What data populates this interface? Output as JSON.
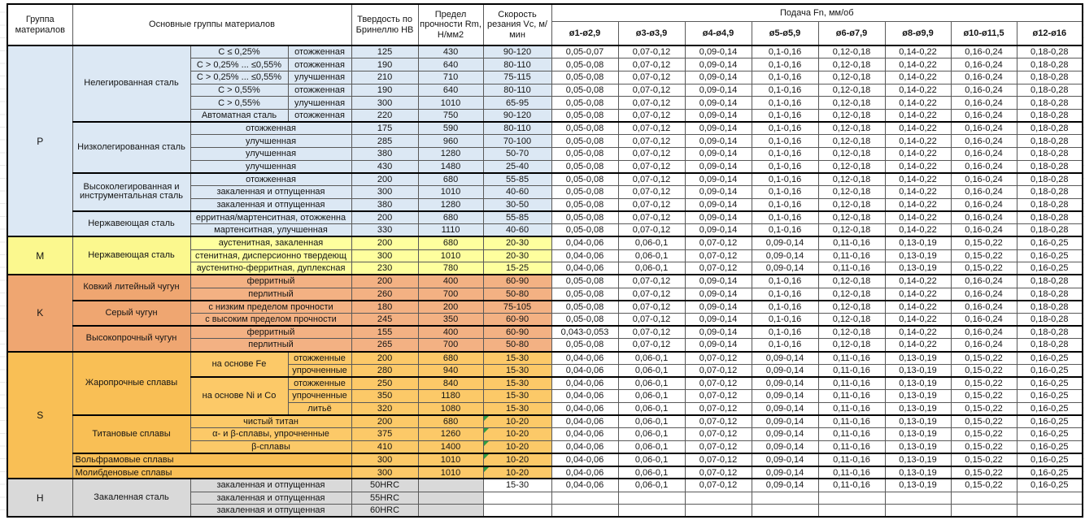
{
  "comment_green": "#2f9e44",
  "header": {
    "group_col": "Группа материалов",
    "main_col": "Основные группы материалов",
    "hardness_col": "Твердость по Бринеллю HB",
    "strength_col": "Предел прочности Rm, Н/мм2",
    "speed_col": "Скорость резания Vc, м/мин",
    "feed_title": "Подача Fn, мм/об",
    "feed_cols": [
      "ø1-ø2,9",
      "ø3-ø3,9",
      "ø4-ø4,9",
      "ø5-ø5,9",
      "ø6-ø7,9",
      "ø8-ø9,9",
      "ø10-ø11,5",
      "ø12-ø16"
    ]
  },
  "groups": [
    {
      "code": "P",
      "label_bg": "#dce8f4",
      "data_bg": "#dce8f4",
      "subgroups": [
        {
          "name": "Нелегированная сталь",
          "rows": [
            {
              "c3": "C ≤ 0,25%",
              "c4": "отожженная",
              "hb": "125",
              "rm": "430",
              "vc": "90-120",
              "feeds": [
                "0,05-0,07",
                "0,07-0,12",
                "0,09-0,14",
                "0,1-0,16",
                "0,12-0,18",
                "0,14-0,22",
                "0,16-0,24",
                "0,18-0,28"
              ]
            },
            {
              "c3": "C > 0,25% ... ≤0,55%",
              "c4": "отожженная",
              "hb": "190",
              "rm": "640",
              "vc": "80-110",
              "feeds": [
                "0,05-0,08",
                "0,07-0,12",
                "0,09-0,14",
                "0,1-0,16",
                "0,12-0,18",
                "0,14-0,22",
                "0,16-0,24",
                "0,18-0,28"
              ]
            },
            {
              "c3": "C > 0,25% ... ≤0,55%",
              "c4": "улучшенная",
              "hb": "210",
              "rm": "710",
              "vc": "75-115",
              "feeds": [
                "0,05-0,08",
                "0,07-0,12",
                "0,09-0,14",
                "0,1-0,16",
                "0,12-0,18",
                "0,14-0,22",
                "0,16-0,24",
                "0,18-0,28"
              ]
            },
            {
              "c3": "C > 0,55%",
              "c4": "отожженная",
              "hb": "190",
              "rm": "640",
              "vc": "80-110",
              "feeds": [
                "0,05-0,08",
                "0,07-0,12",
                "0,09-0,14",
                "0,1-0,16",
                "0,12-0,18",
                "0,14-0,22",
                "0,16-0,24",
                "0,18-0,28"
              ]
            },
            {
              "c3": "C > 0,55%",
              "c4": "улучшенная",
              "hb": "300",
              "rm": "1010",
              "vc": "65-95",
              "feeds": [
                "0,05-0,08",
                "0,07-0,12",
                "0,09-0,14",
                "0,1-0,16",
                "0,12-0,18",
                "0,14-0,22",
                "0,16-0,24",
                "0,18-0,28"
              ]
            },
            {
              "c3": "Автоматная сталь",
              "c4": "отожженная",
              "hb": "220",
              "rm": "750",
              "vc": "90-120",
              "feeds": [
                "0,05-0,08",
                "0,07-0,12",
                "0,09-0,14",
                "0,1-0,16",
                "0,12-0,18",
                "0,14-0,22",
                "0,16-0,24",
                "0,18-0,28"
              ]
            }
          ]
        },
        {
          "name": "Низколегированная сталь",
          "rows": [
            {
              "c34": "отожженная",
              "hb": "175",
              "rm": "590",
              "vc": "80-110",
              "feeds": [
                "0,05-0,08",
                "0,07-0,12",
                "0,09-0,14",
                "0,1-0,16",
                "0,12-0,18",
                "0,14-0,22",
                "0,16-0,24",
                "0,18-0,28"
              ]
            },
            {
              "c34": "улучшенная",
              "hb": "285",
              "rm": "960",
              "vc": "70-100",
              "feeds": [
                "0,05-0,08",
                "0,07-0,12",
                "0,09-0,14",
                "0,1-0,16",
                "0,12-0,18",
                "0,14-0,22",
                "0,16-0,24",
                "0,18-0,28"
              ]
            },
            {
              "c34": "улучшенная",
              "hb": "380",
              "rm": "1280",
              "vc": "50-70",
              "feeds": [
                "0,05-0,08",
                "0,07-0,12",
                "0,09-0,14",
                "0,1-0,16",
                "0,12-0,18",
                "0,14-0,22",
                "0,16-0,24",
                "0,18-0,28"
              ]
            },
            {
              "c34": "улучшенная",
              "hb": "430",
              "rm": "1480",
              "vc": "25-40",
              "feeds": [
                "0,05-0,08",
                "0,07-0,12",
                "0,09-0,14",
                "0,1-0,16",
                "0,12-0,18",
                "0,14-0,22",
                "0,16-0,24",
                "0,18-0,28"
              ]
            }
          ]
        },
        {
          "name": "Высоколегированная и инструментальная сталь",
          "rows": [
            {
              "c34": "отожженная",
              "hb": "200",
              "rm": "680",
              "vc": "55-85",
              "feeds": [
                "0,05-0,08",
                "0,07-0,12",
                "0,09-0,14",
                "0,1-0,16",
                "0,12-0,18",
                "0,14-0,22",
                "0,16-0,24",
                "0,18-0,28"
              ]
            },
            {
              "c34": "закаленная и отпущенная",
              "hb": "300",
              "rm": "1010",
              "vc": "40-60",
              "feeds": [
                "0,05-0,08",
                "0,07-0,12",
                "0,09-0,14",
                "0,1-0,16",
                "0,12-0,18",
                "0,14-0,22",
                "0,16-0,24",
                "0,18-0,28"
              ]
            },
            {
              "c34": "закаленная и отпущенная",
              "hb": "380",
              "rm": "1280",
              "vc": "30-50",
              "feeds": [
                "0,05-0,08",
                "0,07-0,12",
                "0,09-0,14",
                "0,1-0,16",
                "0,12-0,18",
                "0,14-0,22",
                "0,16-0,24",
                "0,18-0,28"
              ]
            }
          ]
        },
        {
          "name": "Нержавеющая сталь",
          "rows": [
            {
              "c34": "ерритная/мартенситная, отожженна",
              "hb": "200",
              "rm": "680",
              "vc": "55-85",
              "feeds": [
                "0,05-0,08",
                "0,07-0,12",
                "0,09-0,14",
                "0,1-0,16",
                "0,12-0,18",
                "0,14-0,22",
                "0,16-0,24",
                "0,18-0,28"
              ]
            },
            {
              "c34": "мартенситная, улучшенная",
              "hb": "330",
              "rm": "1110",
              "vc": "40-60",
              "feeds": [
                "0,05-0,08",
                "0,07-0,12",
                "0,09-0,14",
                "0,1-0,16",
                "0,12-0,18",
                "0,14-0,22",
                "0,16-0,24",
                "0,18-0,28"
              ]
            }
          ]
        }
      ]
    },
    {
      "code": "M",
      "label_bg": "#fbf88e",
      "data_bg": "#feff9e",
      "subgroups": [
        {
          "name": "Нержавеющая сталь",
          "rows": [
            {
              "c34": "аустенитная, закаленная",
              "hb": "200",
              "rm": "680",
              "vc": "20-30",
              "feeds": [
                "0,04-0,06",
                "0,06-0,1",
                "0,07-0,12",
                "0,09-0,14",
                "0,11-0,16",
                "0,13-0,19",
                "0,15-0,22",
                "0,16-0,25"
              ]
            },
            {
              "c34": "стенитная, дисперсионно твердеющ",
              "hb": "300",
              "rm": "1010",
              "vc": "20-30",
              "feeds": [
                "0,04-0,06",
                "0,06-0,1",
                "0,07-0,12",
                "0,09-0,14",
                "0,11-0,16",
                "0,13-0,19",
                "0,15-0,22",
                "0,16-0,25"
              ]
            },
            {
              "c34": "аустенитно-ферритная, дуплексная",
              "hb": "230",
              "rm": "780",
              "vc": "15-25",
              "feeds": [
                "0,04-0,06",
                "0,06-0,1",
                "0,07-0,12",
                "0,09-0,14",
                "0,11-0,16",
                "0,13-0,19",
                "0,15-0,22",
                "0,16-0,25"
              ]
            }
          ]
        }
      ]
    },
    {
      "code": "K",
      "label_bg": "#efa671",
      "data_bg": "#f3b183",
      "subgroups": [
        {
          "name": "Ковкий литейный чугун",
          "rows": [
            {
              "c34": "ферритный",
              "hb": "200",
              "rm": "400",
              "vc": "60-90",
              "feeds": [
                "0,05-0,08",
                "0,07-0,12",
                "0,09-0,14",
                "0,1-0,16",
                "0,12-0,18",
                "0,14-0,22",
                "0,16-0,24",
                "0,18-0,28"
              ]
            },
            {
              "c34": "перлитный",
              "hb": "260",
              "rm": "700",
              "vc": "50-80",
              "feeds": [
                "0,05-0,08",
                "0,07-0,12",
                "0,09-0,14",
                "0,1-0,16",
                "0,12-0,18",
                "0,14-0,22",
                "0,16-0,24",
                "0,18-0,28"
              ]
            }
          ]
        },
        {
          "name": "Серый чугун",
          "rows": [
            {
              "c34": "с низким пределом прочности",
              "hb": "180",
              "rm": "200",
              "vc": "75-105",
              "feeds": [
                "0,05-0,08",
                "0,07-0,12",
                "0,09-0,14",
                "0,1-0,16",
                "0,12-0,18",
                "0,14-0,22",
                "0,16-0,24",
                "0,18-0,28"
              ]
            },
            {
              "c34": "с высоким пределом прочности",
              "hb": "245",
              "rm": "350",
              "vc": "60-90",
              "feeds": [
                "0,05-0,08",
                "0,07-0,12",
                "0,09-0,14",
                "0,1-0,16",
                "0,12-0,18",
                "0,14-0,22",
                "0,16-0,24",
                "0,18-0,28"
              ]
            }
          ]
        },
        {
          "name": "Высокопрочный чугун",
          "rows": [
            {
              "c34": "ферритный",
              "hb": "155",
              "rm": "400",
              "vc": "60-90",
              "feeds": [
                "0,043-0,053",
                "0,07-0,12",
                "0,09-0,14",
                "0,1-0,16",
                "0,12-0,18",
                "0,14-0,22",
                "0,16-0,24",
                "0,18-0,28"
              ]
            },
            {
              "c34": "перлитный",
              "hb": "265",
              "rm": "700",
              "vc": "50-80",
              "feeds": [
                "0,05-0,08",
                "0,07-0,12",
                "0,09-0,14",
                "0,1-0,16",
                "0,12-0,18",
                "0,14-0,22",
                "0,16-0,24",
                "0,18-0,28"
              ]
            }
          ]
        }
      ]
    },
    {
      "code": "S",
      "label_bg": "#f9bf55",
      "data_bg": "#fcc968",
      "subgroups": [
        {
          "name": "Жаропрочные сплавы",
          "rows": [
            {
              "c3": "на основе Fe",
              "c3_span": 2,
              "c4": "отожженные",
              "hb": "200",
              "rm": "680",
              "vc": "15-30",
              "feeds": [
                "0,04-0,06",
                "0,06-0,1",
                "0,07-0,12",
                "0,09-0,14",
                "0,11-0,16",
                "0,13-0,19",
                "0,15-0,22",
                "0,16-0,25"
              ]
            },
            {
              "c4": "упрочненные",
              "hb": "280",
              "rm": "940",
              "vc": "15-30",
              "feeds": [
                "0,04-0,06",
                "0,06-0,1",
                "0,07-0,12",
                "0,09-0,14",
                "0,11-0,16",
                "0,13-0,19",
                "0,15-0,22",
                "0,16-0,25"
              ]
            },
            {
              "c3": "на основе Ni и Co",
              "c3_span": 3,
              "c4": "отожженные",
              "hb": "250",
              "rm": "840",
              "vc": "15-30",
              "feeds": [
                "0,04-0,06",
                "0,06-0,1",
                "0,07-0,12",
                "0,09-0,14",
                "0,11-0,16",
                "0,13-0,19",
                "0,15-0,22",
                "0,16-0,25"
              ]
            },
            {
              "c4": "упрочненные",
              "hb": "350",
              "rm": "1180",
              "vc": "15-30",
              "feeds": [
                "0,04-0,06",
                "0,06-0,1",
                "0,07-0,12",
                "0,09-0,14",
                "0,11-0,16",
                "0,13-0,19",
                "0,15-0,22",
                "0,16-0,25"
              ]
            },
            {
              "c4": "литьё",
              "hb": "320",
              "rm": "1080",
              "vc": "15-30",
              "feeds": [
                "0,04-0,06",
                "0,06-0,1",
                "0,07-0,12",
                "0,09-0,14",
                "0,11-0,16",
                "0,13-0,19",
                "0,15-0,22",
                "0,16-0,25"
              ]
            }
          ]
        },
        {
          "name": "Титановые сплавы",
          "rows": [
            {
              "c34": "чистый титан",
              "hb": "200",
              "rm": "680",
              "vc": "10-20",
              "green": true,
              "feeds": [
                "0,04-0,06",
                "0,06-0,1",
                "0,07-0,12",
                "0,09-0,14",
                "0,11-0,16",
                "0,13-0,19",
                "0,15-0,22",
                "0,16-0,25"
              ]
            },
            {
              "c34": "α- и β-сплавы, упрочненные",
              "hb": "375",
              "rm": "1260",
              "vc": "10-20",
              "green": true,
              "feeds": [
                "0,04-0,06",
                "0,06-0,1",
                "0,07-0,12",
                "0,09-0,14",
                "0,11-0,16",
                "0,13-0,19",
                "0,15-0,22",
                "0,16-0,25"
              ]
            },
            {
              "c34": "β-сплавы",
              "hb": "410",
              "rm": "1400",
              "vc": "10-20",
              "green": true,
              "feeds": [
                "0,04-0,06",
                "0,06-0,1",
                "0,07-0,12",
                "0,09-0,14",
                "0,11-0,16",
                "0,13-0,19",
                "0,15-0,22",
                "0,16-0,25"
              ]
            }
          ]
        },
        {
          "name": "Вольфрамовые сплавы",
          "merge_all": true,
          "rows": [
            {
              "hb": "300",
              "rm": "1010",
              "vc": "10-20",
              "green": true,
              "feeds": [
                "0,04-0,06",
                "0,06-0,1",
                "0,07-0,12",
                "0,09-0,14",
                "0,11-0,16",
                "0,13-0,19",
                "0,15-0,22",
                "0,16-0,25"
              ]
            }
          ]
        },
        {
          "name": "Молибденовые сплавы",
          "merge_all": true,
          "rows": [
            {
              "hb": "300",
              "rm": "1010",
              "vc": "10-20",
              "green": true,
              "feeds": [
                "0,04-0,06",
                "0,06-0,1",
                "0,07-0,12",
                "0,09-0,14",
                "0,11-0,16",
                "0,13-0,19",
                "0,15-0,22",
                "0,16-0,25"
              ]
            }
          ]
        }
      ]
    },
    {
      "code": "H",
      "label_bg": "#d9d9d9",
      "data_bg": "#d9d9d9",
      "vc_bg": "#ffffff",
      "subgroups": [
        {
          "name": "Закаленная сталь",
          "rows": [
            {
              "c34": "закаленная и отпущенная",
              "hb": "50HRC",
              "rm": "",
              "vc": "15-30",
              "feeds": [
                "0,04-0,06",
                "0,06-0,1",
                "0,07-0,12",
                "0,09-0,14",
                "0,11-0,16",
                "0,13-0,19",
                "0,15-0,22",
                "0,16-0,25"
              ]
            },
            {
              "c34": "закаленная и отпущенная",
              "hb": "55HRC",
              "rm": "",
              "vc": "",
              "feeds": [
                "",
                "",
                "",
                "",
                "",
                "",
                "",
                ""
              ]
            },
            {
              "c34": "закаленная и отпущенная",
              "hb": "60HRC",
              "rm": "",
              "vc": "",
              "feeds": [
                "",
                "",
                "",
                "",
                "",
                "",
                "",
                ""
              ]
            }
          ]
        }
      ]
    }
  ]
}
